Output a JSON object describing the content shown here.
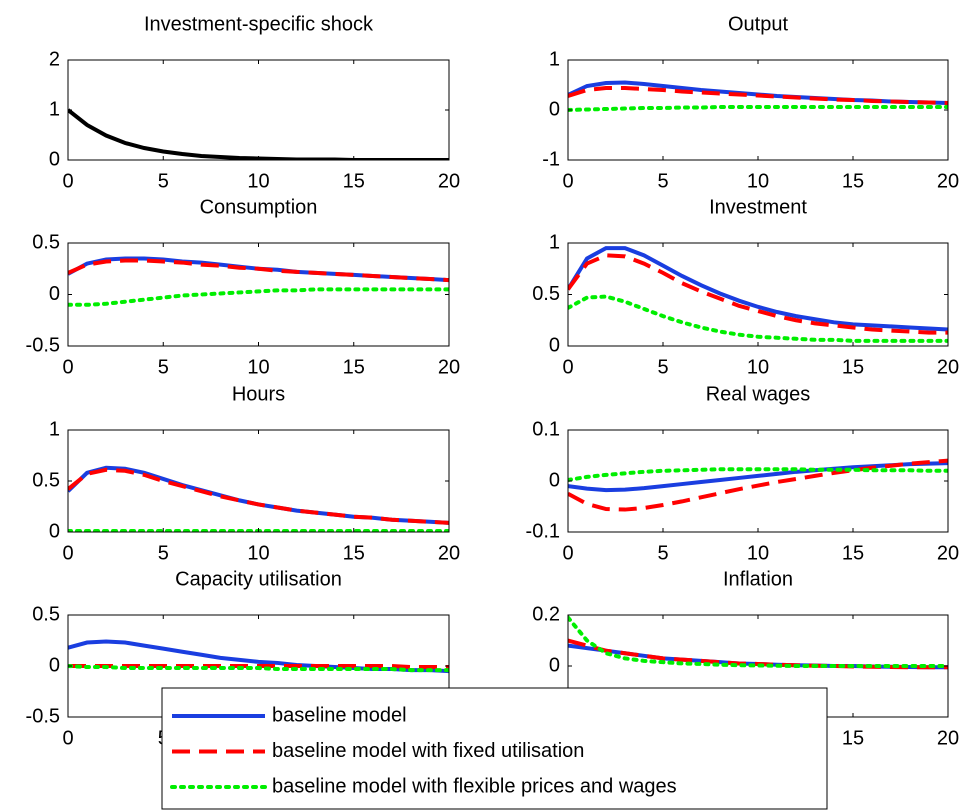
{
  "chart_data": [
    {
      "type": "line",
      "title": "Investment-specific shock",
      "x": [
        0,
        1,
        2,
        3,
        4,
        5,
        6,
        7,
        8,
        9,
        10,
        11,
        12,
        13,
        14,
        15,
        16,
        17,
        18,
        19,
        20
      ],
      "xlim": [
        0,
        20
      ],
      "xticks": [
        0,
        5,
        10,
        15,
        20
      ],
      "ylim": [
        0,
        2
      ],
      "yticks": [
        0,
        1,
        2
      ],
      "series": [
        {
          "color": "#000000",
          "linestyle": "solid",
          "values": [
            1,
            0.7,
            0.49,
            0.34,
            0.24,
            0.17,
            0.12,
            0.08,
            0.06,
            0.04,
            0.03,
            0.02,
            0.01,
            0.01,
            0.01,
            0,
            0,
            0,
            0,
            0,
            0
          ]
        }
      ]
    },
    {
      "type": "line",
      "title": "Output",
      "x": [
        0,
        1,
        2,
        3,
        4,
        5,
        6,
        7,
        8,
        9,
        10,
        11,
        12,
        13,
        14,
        15,
        16,
        17,
        18,
        19,
        20
      ],
      "xlim": [
        0,
        20
      ],
      "xticks": [
        0,
        5,
        10,
        15,
        20
      ],
      "ylim": [
        -1,
        1
      ],
      "yticks": [
        -1,
        0,
        1
      ],
      "series": [
        {
          "name": "baseline model",
          "color": "#1a3ee0",
          "linestyle": "solid",
          "values": [
            0.3,
            0.48,
            0.54,
            0.55,
            0.52,
            0.48,
            0.44,
            0.4,
            0.37,
            0.34,
            0.31,
            0.28,
            0.26,
            0.24,
            0.22,
            0.2,
            0.19,
            0.17,
            0.16,
            0.15,
            0.14
          ]
        },
        {
          "name": "baseline model with fixed utilisation",
          "color": "#ff0000",
          "linestyle": "dashed",
          "values": [
            0.28,
            0.4,
            0.44,
            0.44,
            0.42,
            0.4,
            0.37,
            0.35,
            0.33,
            0.31,
            0.29,
            0.27,
            0.25,
            0.23,
            0.21,
            0.2,
            0.18,
            0.17,
            0.16,
            0.15,
            0.14
          ]
        },
        {
          "name": "baseline model with flexible prices and wages",
          "color": "#00ee00",
          "linestyle": "dotted",
          "values": [
            0,
            0.01,
            0.02,
            0.03,
            0.04,
            0.04,
            0.05,
            0.05,
            0.06,
            0.06,
            0.06,
            0.06,
            0.06,
            0.06,
            0.06,
            0.06,
            0.06,
            0.06,
            0.06,
            0.06,
            0.06
          ]
        }
      ]
    },
    {
      "type": "line",
      "title": "Consumption",
      "x": [
        0,
        1,
        2,
        3,
        4,
        5,
        6,
        7,
        8,
        9,
        10,
        11,
        12,
        13,
        14,
        15,
        16,
        17,
        18,
        19,
        20
      ],
      "xlim": [
        0,
        20
      ],
      "xticks": [
        0,
        5,
        10,
        15,
        20
      ],
      "ylim": [
        -0.5,
        0.5
      ],
      "yticks": [
        -0.5,
        0,
        0.5
      ],
      "series": [
        {
          "color": "#1a3ee0",
          "linestyle": "solid",
          "values": [
            0.2,
            0.3,
            0.34,
            0.35,
            0.35,
            0.34,
            0.32,
            0.31,
            0.29,
            0.27,
            0.25,
            0.24,
            0.22,
            0.21,
            0.2,
            0.19,
            0.18,
            0.17,
            0.16,
            0.15,
            0.14
          ]
        },
        {
          "color": "#ff0000",
          "linestyle": "dashed",
          "values": [
            0.21,
            0.29,
            0.32,
            0.33,
            0.33,
            0.32,
            0.31,
            0.29,
            0.28,
            0.26,
            0.25,
            0.23,
            0.22,
            0.21,
            0.2,
            0.19,
            0.18,
            0.17,
            0.16,
            0.15,
            0.14
          ]
        },
        {
          "color": "#00ee00",
          "linestyle": "dotted",
          "values": [
            -0.1,
            -0.1,
            -0.09,
            -0.07,
            -0.05,
            -0.03,
            -0.01,
            0,
            0.01,
            0.02,
            0.03,
            0.04,
            0.04,
            0.05,
            0.05,
            0.05,
            0.05,
            0.05,
            0.05,
            0.05,
            0.05
          ]
        }
      ]
    },
    {
      "type": "line",
      "title": "Investment",
      "x": [
        0,
        1,
        2,
        3,
        4,
        5,
        6,
        7,
        8,
        9,
        10,
        11,
        12,
        13,
        14,
        15,
        16,
        17,
        18,
        19,
        20
      ],
      "xlim": [
        0,
        20
      ],
      "xticks": [
        0,
        5,
        10,
        15,
        20
      ],
      "ylim": [
        0,
        1
      ],
      "yticks": [
        0,
        0.5,
        1
      ],
      "series": [
        {
          "color": "#1a3ee0",
          "linestyle": "solid",
          "values": [
            0.55,
            0.85,
            0.95,
            0.95,
            0.88,
            0.78,
            0.68,
            0.59,
            0.51,
            0.44,
            0.38,
            0.33,
            0.29,
            0.26,
            0.23,
            0.21,
            0.2,
            0.19,
            0.18,
            0.17,
            0.16
          ]
        },
        {
          "color": "#ff0000",
          "linestyle": "dashed",
          "values": [
            0.55,
            0.8,
            0.88,
            0.87,
            0.8,
            0.71,
            0.61,
            0.53,
            0.46,
            0.39,
            0.34,
            0.29,
            0.25,
            0.22,
            0.2,
            0.18,
            0.16,
            0.15,
            0.14,
            0.13,
            0.13
          ]
        },
        {
          "color": "#00ee00",
          "linestyle": "dotted",
          "values": [
            0.37,
            0.47,
            0.48,
            0.43,
            0.36,
            0.29,
            0.23,
            0.18,
            0.14,
            0.11,
            0.09,
            0.08,
            0.07,
            0.06,
            0.06,
            0.05,
            0.05,
            0.05,
            0.05,
            0.05,
            0.05
          ]
        }
      ]
    },
    {
      "type": "line",
      "title": "Hours",
      "x": [
        0,
        1,
        2,
        3,
        4,
        5,
        6,
        7,
        8,
        9,
        10,
        11,
        12,
        13,
        14,
        15,
        16,
        17,
        18,
        19,
        20
      ],
      "xlim": [
        0,
        20
      ],
      "xticks": [
        0,
        5,
        10,
        15,
        20
      ],
      "ylim": [
        0,
        1
      ],
      "yticks": [
        0,
        0.5,
        1
      ],
      "series": [
        {
          "color": "#1a3ee0",
          "linestyle": "solid",
          "values": [
            0.4,
            0.58,
            0.63,
            0.62,
            0.58,
            0.52,
            0.46,
            0.41,
            0.36,
            0.31,
            0.27,
            0.24,
            0.21,
            0.19,
            0.17,
            0.15,
            0.14,
            0.12,
            0.11,
            0.1,
            0.09
          ]
        },
        {
          "color": "#ff0000",
          "linestyle": "dashed",
          "values": [
            0.42,
            0.57,
            0.61,
            0.6,
            0.56,
            0.5,
            0.45,
            0.4,
            0.35,
            0.31,
            0.27,
            0.24,
            0.21,
            0.19,
            0.17,
            0.15,
            0.14,
            0.12,
            0.11,
            0.1,
            0.09
          ]
        },
        {
          "color": "#00ee00",
          "linestyle": "dotted",
          "values": [
            0.01,
            0.01,
            0.01,
            0.01,
            0.01,
            0.01,
            0.01,
            0.01,
            0.01,
            0.01,
            0.01,
            0.01,
            0.01,
            0.01,
            0.01,
            0.01,
            0.01,
            0.01,
            0.01,
            0.01,
            0.01
          ]
        }
      ]
    },
    {
      "type": "line",
      "title": "Real wages",
      "x": [
        0,
        1,
        2,
        3,
        4,
        5,
        6,
        7,
        8,
        9,
        10,
        11,
        12,
        13,
        14,
        15,
        16,
        17,
        18,
        19,
        20
      ],
      "xlim": [
        0,
        20
      ],
      "xticks": [
        0,
        5,
        10,
        15,
        20
      ],
      "ylim": [
        -0.1,
        0.1
      ],
      "yticks": [
        -0.1,
        0,
        0.1
      ],
      "series": [
        {
          "color": "#1a3ee0",
          "linestyle": "solid",
          "values": [
            -0.01,
            -0.015,
            -0.018,
            -0.017,
            -0.014,
            -0.01,
            -0.006,
            -0.002,
            0.002,
            0.006,
            0.01,
            0.014,
            0.018,
            0.021,
            0.024,
            0.027,
            0.029,
            0.031,
            0.033,
            0.034,
            0.035
          ]
        },
        {
          "color": "#ff0000",
          "linestyle": "dashed",
          "values": [
            -0.025,
            -0.045,
            -0.055,
            -0.056,
            -0.053,
            -0.047,
            -0.04,
            -0.032,
            -0.024,
            -0.016,
            -0.009,
            -0.002,
            0.004,
            0.01,
            0.016,
            0.021,
            0.026,
            0.03,
            0.034,
            0.037,
            0.04
          ]
        },
        {
          "color": "#00ee00",
          "linestyle": "dotted",
          "values": [
            0.002,
            0.008,
            0.012,
            0.015,
            0.018,
            0.02,
            0.021,
            0.022,
            0.023,
            0.023,
            0.023,
            0.023,
            0.023,
            0.022,
            0.022,
            0.022,
            0.021,
            0.021,
            0.021,
            0.02,
            0.02
          ]
        }
      ]
    },
    {
      "type": "line",
      "title": "Capacity utilisation",
      "x": [
        0,
        1,
        2,
        3,
        4,
        5,
        6,
        7,
        8,
        9,
        10,
        11,
        12,
        13,
        14,
        15,
        16,
        17,
        18,
        19,
        20
      ],
      "xlim": [
        0,
        20
      ],
      "xticks": [
        0,
        5,
        10,
        15,
        20
      ],
      "ylim": [
        -0.5,
        0.5
      ],
      "yticks": [
        -0.5,
        0,
        0.5
      ],
      "series": [
        {
          "color": "#1a3ee0",
          "linestyle": "solid",
          "values": [
            0.18,
            0.23,
            0.24,
            0.23,
            0.2,
            0.17,
            0.14,
            0.11,
            0.08,
            0.06,
            0.04,
            0.03,
            0.01,
            0,
            -0.01,
            -0.02,
            -0.03,
            -0.03,
            -0.04,
            -0.04,
            -0.05
          ]
        },
        {
          "color": "#ff0000",
          "linestyle": "dashed",
          "values": [
            0,
            0,
            0,
            0,
            0,
            0,
            0,
            0,
            0,
            0,
            0,
            0,
            0,
            0,
            0,
            0,
            0,
            0,
            -0.01,
            -0.01,
            -0.01
          ]
        },
        {
          "color": "#00ee00",
          "linestyle": "dotted",
          "values": [
            0,
            -0.01,
            -0.01,
            -0.02,
            -0.02,
            -0.02,
            -0.02,
            -0.02,
            -0.02,
            -0.02,
            -0.02,
            -0.03,
            -0.03,
            -0.03,
            -0.03,
            -0.03,
            -0.03,
            -0.03,
            -0.04,
            -0.04,
            -0.04
          ]
        }
      ]
    },
    {
      "type": "line",
      "title": "Inflation",
      "x": [
        0,
        1,
        2,
        3,
        4,
        5,
        6,
        7,
        8,
        9,
        10,
        11,
        12,
        13,
        14,
        15,
        16,
        17,
        18,
        19,
        20
      ],
      "xlim": [
        0,
        20
      ],
      "xticks": [
        0,
        5,
        10,
        15,
        20
      ],
      "ylim": [
        -0.2,
        0.2
      ],
      "yticks": [
        0,
        0.2
      ],
      "series": [
        {
          "color": "#1a3ee0",
          "linestyle": "solid",
          "values": [
            0.08,
            0.07,
            0.06,
            0.05,
            0.04,
            0.03,
            0.025,
            0.02,
            0.015,
            0.01,
            0.008,
            0.005,
            0.003,
            0.002,
            0,
            0,
            -0.002,
            -0.003,
            -0.004,
            -0.005,
            -0.005
          ]
        },
        {
          "color": "#ff0000",
          "linestyle": "dashed",
          "values": [
            0.1,
            0.08,
            0.06,
            0.05,
            0.04,
            0.03,
            0.025,
            0.02,
            0.015,
            0.01,
            0.008,
            0.005,
            0.003,
            0.001,
            0,
            -0.002,
            -0.003,
            -0.004,
            -0.005,
            -0.005,
            -0.005
          ]
        },
        {
          "color": "#00ee00",
          "linestyle": "dotted",
          "values": [
            0.19,
            0.1,
            0.05,
            0.03,
            0.02,
            0.015,
            0.01,
            0.008,
            0.005,
            0.003,
            0.002,
            0.001,
            0,
            0,
            0,
            0,
            0,
            0,
            0,
            0,
            0
          ]
        }
      ]
    }
  ]
}
